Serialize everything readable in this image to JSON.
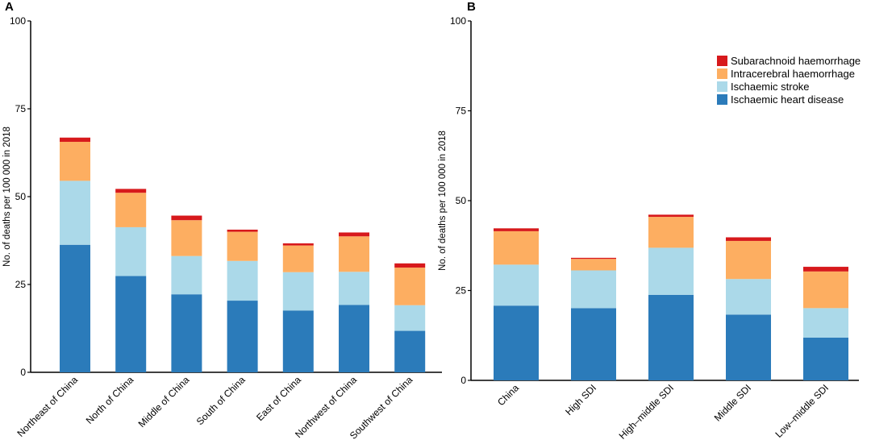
{
  "colors": {
    "Ischaemic heart disease": "#2b7bba",
    "Ischaemic stroke": "#abd9e9",
    "Intracerebral haemorrhage": "#fdae61",
    "Subarachnoid haemorrhage": "#d7191c"
  },
  "legend": {
    "order": [
      "Subarachnoid haemorrhage",
      "Intracerebral haemorrhage",
      "Ischaemic stroke",
      "Ischaemic heart disease"
    ],
    "placement": "top-right"
  },
  "chart_data": [
    {
      "type": "bar",
      "stacked": true,
      "panel_label": "A",
      "ylabel": "No. of deaths per 100 000 in 2018",
      "ylim": [
        0,
        100
      ],
      "yticks": [
        0,
        25,
        50,
        75,
        100
      ],
      "categories": [
        "Northeast of China",
        "North of China",
        "Middle of China",
        "South of China",
        "East of China",
        "Northwest of China",
        "Southwest of China"
      ],
      "series": [
        {
          "name": "Ischaemic heart disease",
          "values": [
            36.3,
            27.4,
            22.2,
            20.4,
            17.6,
            19.2,
            11.8
          ]
        },
        {
          "name": "Ischaemic stroke",
          "values": [
            18.2,
            13.9,
            10.9,
            11.3,
            10.9,
            9.4,
            7.3
          ]
        },
        {
          "name": "Intracerebral haemorrhage",
          "values": [
            11.1,
            9.8,
            10.2,
            8.3,
            7.6,
            10.1,
            10.7
          ]
        },
        {
          "name": "Subarachnoid haemorrhage",
          "values": [
            1.2,
            1.1,
            1.3,
            0.6,
            0.6,
            1.1,
            1.2
          ]
        }
      ]
    },
    {
      "type": "bar",
      "stacked": true,
      "panel_label": "B",
      "ylabel": "No. of deaths per 100 000 in 2018",
      "ylim": [
        0,
        100
      ],
      "yticks": [
        0,
        25,
        50,
        75,
        100
      ],
      "categories": [
        "China",
        "High SDI",
        "High–middle SDI",
        "Middle SDI",
        "Low–middle SDI"
      ],
      "series": [
        {
          "name": "Ischaemic heart disease",
          "values": [
            20.8,
            20.1,
            23.8,
            18.3,
            11.9
          ]
        },
        {
          "name": "Ischaemic stroke",
          "values": [
            11.4,
            10.5,
            13.1,
            9.9,
            8.2
          ]
        },
        {
          "name": "Intracerebral haemorrhage",
          "values": [
            9.3,
            3.2,
            8.6,
            10.6,
            10.2
          ]
        },
        {
          "name": "Subarachnoid haemorrhage",
          "values": [
            0.8,
            0.3,
            0.6,
            1.0,
            1.3
          ]
        }
      ]
    }
  ]
}
